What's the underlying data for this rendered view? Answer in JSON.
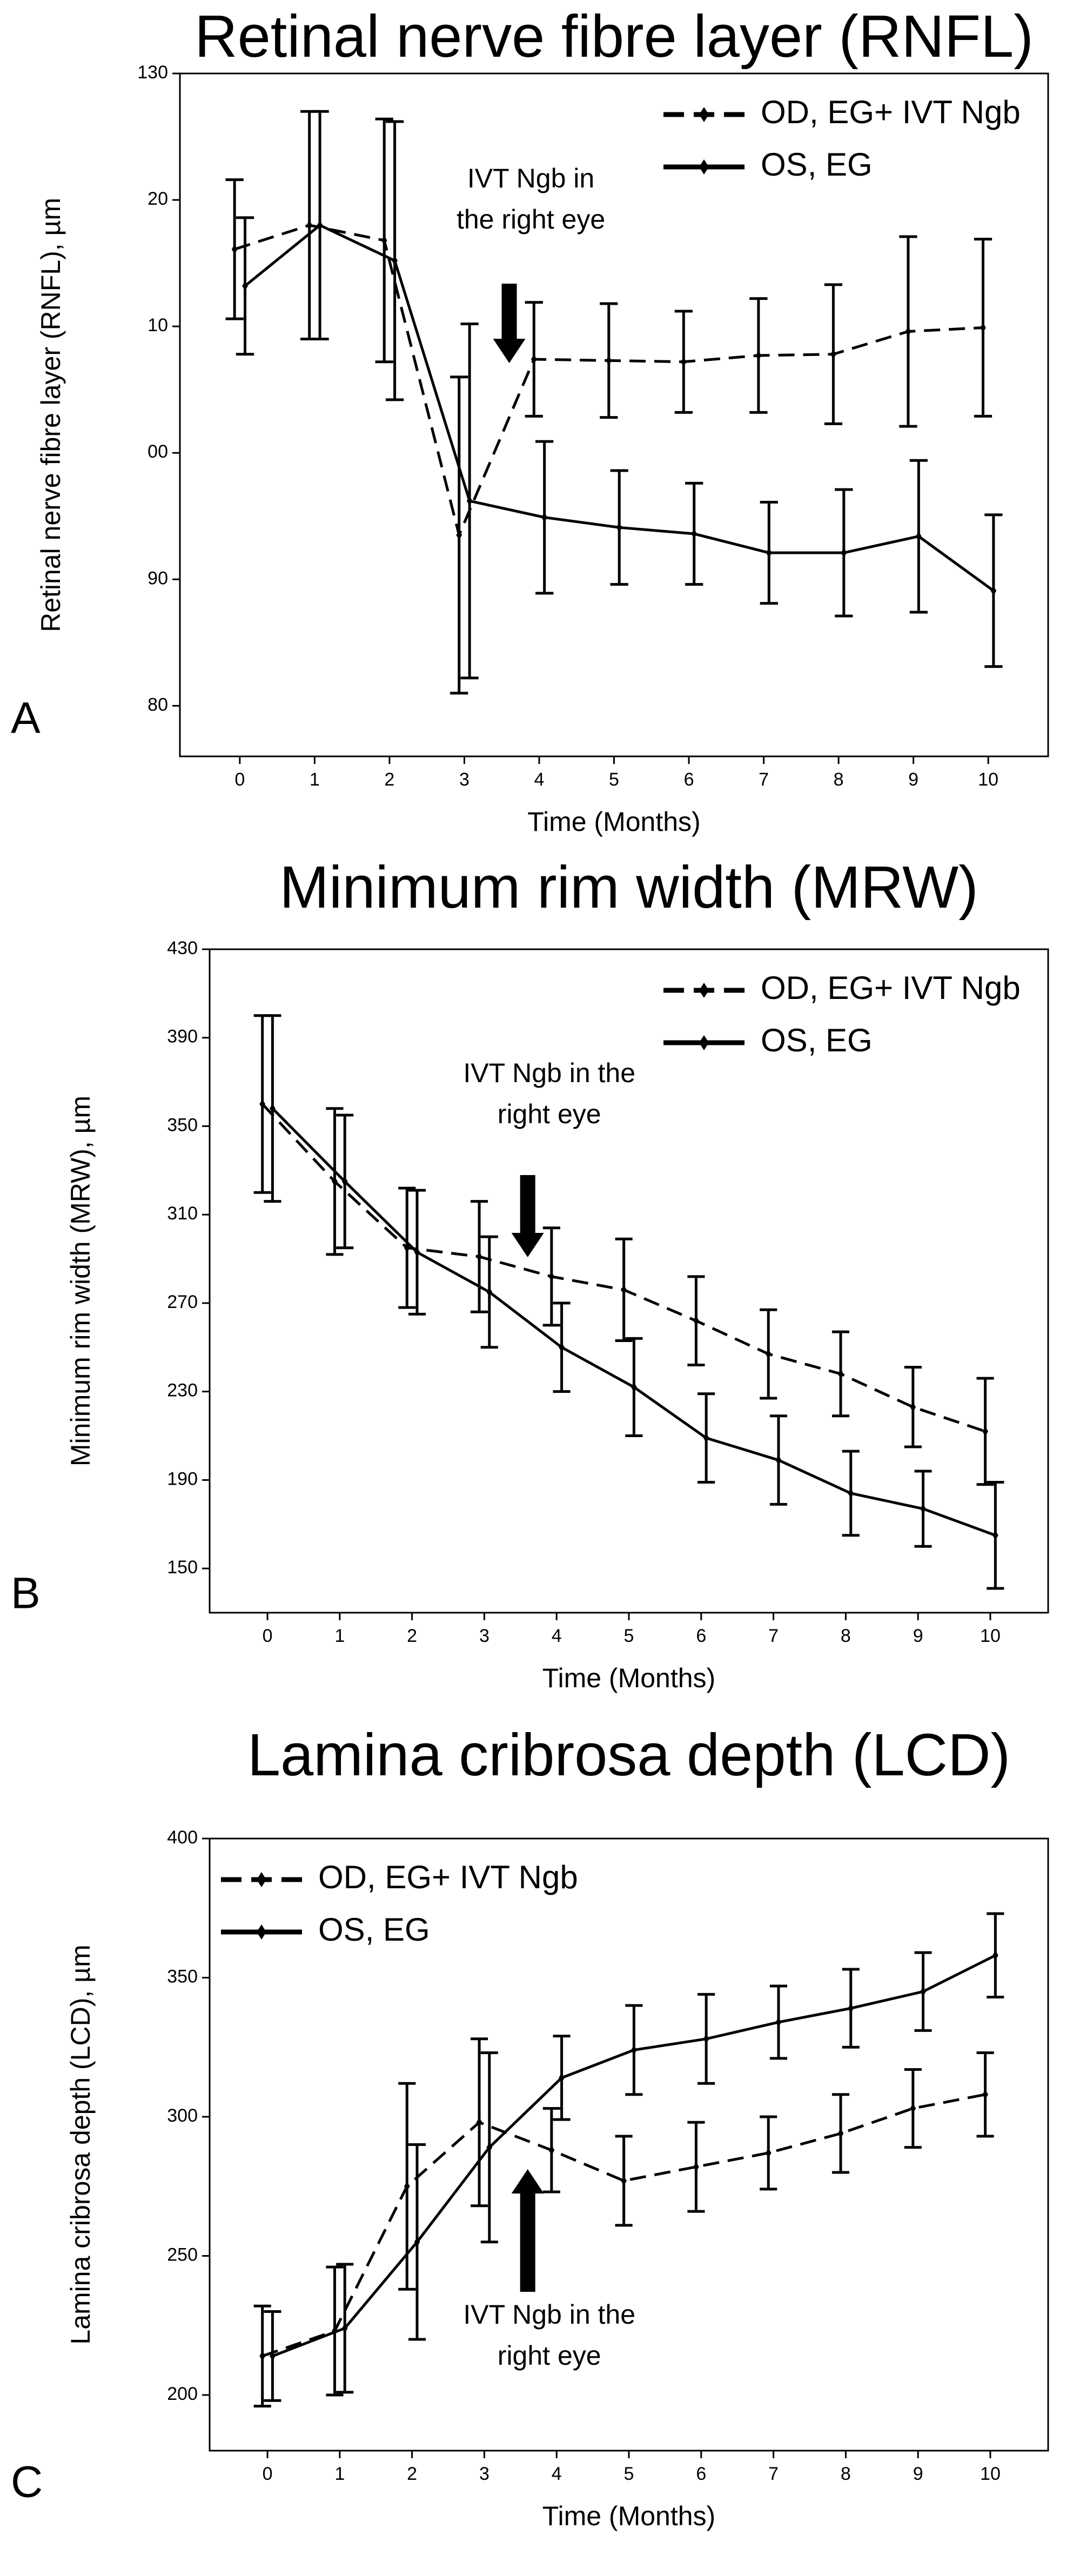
{
  "chart_data": [
    {
      "type": "line",
      "title": "Retinal nerve fibre layer (RNFL)",
      "panel": "A",
      "xlabel": "Time (Months)",
      "ylabel": "Retinal nerve fibre layer (RNFL), µm",
      "x": [
        0,
        1,
        2,
        3,
        4,
        5,
        6,
        7,
        8,
        9,
        10
      ],
      "xlim": [
        -0.8,
        10.8
      ],
      "xticks": [
        0,
        1,
        2,
        3,
        4,
        5,
        6,
        7,
        8,
        9,
        10
      ],
      "ylim": [
        76,
        130
      ],
      "yticks": [
        80,
        90,
        {
          "value": 100,
          "label": "00"
        },
        {
          "value": 110,
          "label": "10"
        },
        {
          "value": 120,
          "label": "20"
        },
        130
      ],
      "legend": "upper right",
      "annotation": [
        "IVT Ngb in",
        "the right eye"
      ],
      "annotation_x": 3.6,
      "series": [
        {
          "name": "OD, EG+ IVT Ngb",
          "color": "#000000",
          "dashed": true,
          "values": [
            116.1,
            118,
            116.8,
            93.5,
            107.4,
            107.3,
            107.2,
            107.7,
            107.8,
            109.6,
            109.9
          ],
          "errors": [
            5.5,
            9,
            9.6,
            12.5,
            4.5,
            4.5,
            4,
            4.5,
            5.5,
            7.5,
            7
          ]
        },
        {
          "name": "OS, EG",
          "color": "#000000",
          "dashed": false,
          "values": [
            113.2,
            118,
            115.2,
            96.2,
            94.9,
            94.1,
            93.6,
            92.1,
            92.1,
            93.4,
            89.1
          ],
          "errors": [
            5.4,
            9,
            11,
            14,
            6,
            4.5,
            4,
            4,
            5,
            6,
            6
          ]
        }
      ]
    },
    {
      "type": "line",
      "title": "Minimum rim width (MRW)",
      "panel": "B",
      "xlabel": "Time (Months)",
      "ylabel": "Minimum rim width (MRW), µm",
      "x": [
        0,
        1,
        2,
        3,
        4,
        5,
        6,
        7,
        8,
        9,
        10
      ],
      "xlim": [
        -0.8,
        10.8
      ],
      "xticks": [
        0,
        1,
        2,
        3,
        4,
        5,
        6,
        7,
        8,
        9,
        10
      ],
      "ylim": [
        130,
        430
      ],
      "yticks": [
        150,
        190,
        230,
        270,
        310,
        350,
        390,
        430
      ],
      "legend": "upper right",
      "annotation": [
        "IVT Ngb in the",
        "right eye"
      ],
      "annotation_x": 3.6,
      "series": [
        {
          "name": "OD, EG+ IVT Ngb",
          "color": "#000000",
          "dashed": true,
          "values": [
            360,
            325,
            295,
            291,
            282,
            276,
            262,
            247,
            238,
            223,
            212
          ],
          "errors": [
            40,
            33,
            27,
            25,
            22,
            23,
            20,
            20,
            19,
            18,
            24
          ]
        },
        {
          "name": "OS, EG",
          "color": "#000000",
          "dashed": false,
          "values": [
            358,
            325,
            293,
            275,
            250,
            232,
            209,
            199,
            184,
            177,
            165
          ],
          "errors": [
            42,
            30,
            28,
            25,
            20,
            22,
            20,
            20,
            19,
            17,
            24
          ]
        }
      ]
    },
    {
      "type": "line",
      "title": "Lamina cribrosa depth (LCD)",
      "panel": "C",
      "xlabel": "Time (Months)",
      "ylabel": "Lamina cribrosa depth (LCD), µm",
      "x": [
        0,
        1,
        2,
        3,
        4,
        5,
        6,
        7,
        8,
        9,
        10
      ],
      "xlim": [
        -0.8,
        10.8
      ],
      "xticks": [
        0,
        1,
        2,
        3,
        4,
        5,
        6,
        7,
        8,
        9,
        10
      ],
      "ylim": [
        180,
        400
      ],
      "yticks": [
        200,
        250,
        300,
        350,
        400
      ],
      "legend": "upper left",
      "annotation": [
        "IVT Ngb in the",
        "right eye"
      ],
      "annotation_x": 3.6,
      "series": [
        {
          "name": "OD, EG+ IVT Ngb",
          "color": "#000000",
          "dashed": true,
          "values": [
            214,
            223,
            275,
            298,
            288,
            277,
            282,
            287,
            294,
            303,
            308
          ],
          "errors": [
            18,
            23,
            37,
            30,
            15,
            16,
            16,
            13,
            14,
            14,
            15
          ]
        },
        {
          "name": "OS, EG",
          "color": "#000000",
          "dashed": false,
          "values": [
            214,
            224,
            255,
            289,
            314,
            324,
            328,
            334,
            339,
            345,
            358
          ],
          "errors": [
            16,
            23,
            35,
            34,
            15,
            16,
            16,
            13,
            14,
            14,
            15
          ]
        }
      ]
    }
  ]
}
